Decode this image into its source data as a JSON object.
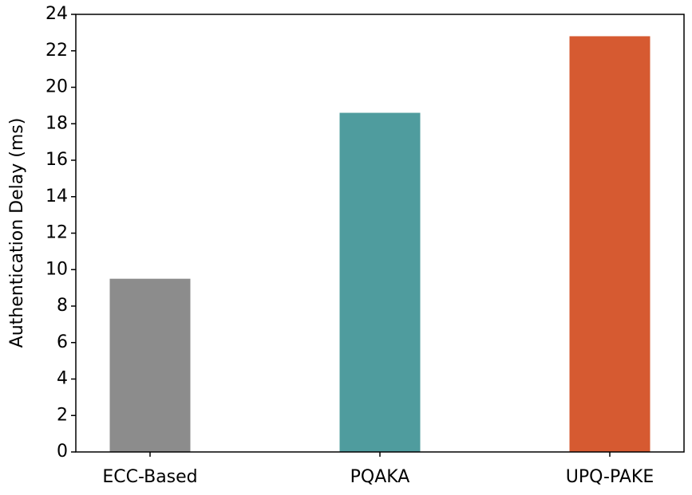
{
  "chart_data": {
    "type": "bar",
    "y_label": "Authentication Delay (ms)",
    "categories": [
      "ECC-Based",
      "PQAKA",
      "UPQ-PAKE"
    ],
    "values": [
      9.5,
      18.6,
      22.8
    ],
    "colors": [
      "#8c8c8c",
      "#4f9c9e",
      "#d65a31"
    ],
    "ylim": [
      0,
      24
    ],
    "yticks": [
      0,
      2,
      4,
      6,
      8,
      10,
      12,
      14,
      16,
      18,
      20,
      22,
      24
    ],
    "grid": false
  }
}
